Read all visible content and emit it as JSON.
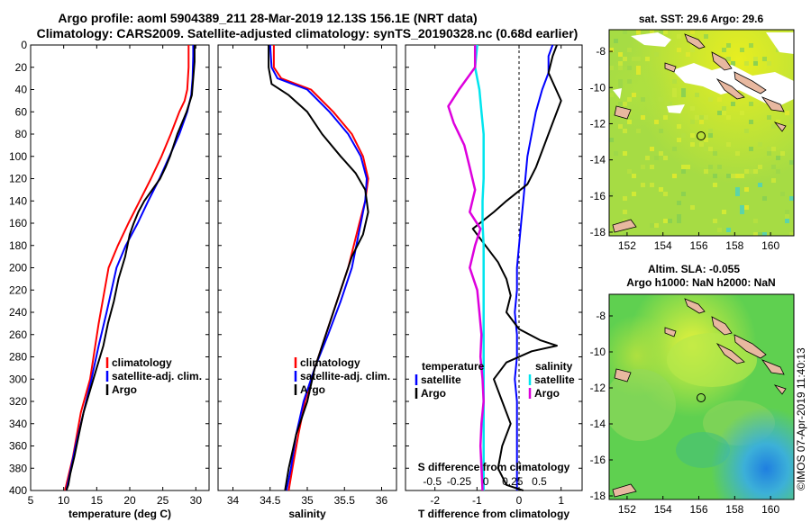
{
  "title_line1": "Argo profile: aoml 5904389_211 28-Mar-2019 12.13S 156.1E (NRT data)",
  "title_line2": "Climatology: CARS2009. Satellite-adjusted climatology: synTS_20190328.nc (0.68d earlier)",
  "credit": "©IMOS 07-Apr-2019 11:40:13",
  "colors": {
    "climatology": "#ff0000",
    "satellite": "#0000ff",
    "argo": "#000000",
    "sat_salinity": "#00e5ee",
    "clim_salinity": "#dd00dd"
  },
  "chart_data": [
    {
      "type": "line",
      "name": "temperature",
      "xlabel": "temperature (deg C)",
      "xlim": [
        5,
        32
      ],
      "xticks": [
        5,
        10,
        15,
        20,
        25,
        30
      ],
      "ylim": [
        0,
        400
      ],
      "yticks": [
        0,
        20,
        40,
        60,
        80,
        100,
        120,
        140,
        160,
        180,
        200,
        220,
        240,
        260,
        280,
        300,
        320,
        340,
        360,
        380,
        400
      ],
      "legend": [
        "climatology",
        "satellite-adj. clim.",
        "Argo"
      ],
      "series": [
        {
          "name": "climatology",
          "color": "#ff0000",
          "x": [
            28.9,
            28.9,
            28.7,
            28.3,
            27.5,
            26.2,
            24.8,
            23.2,
            21.5,
            19.8,
            18.2,
            16.8,
            15.3,
            14.0,
            12.6,
            11.4,
            10.2
          ],
          "y": [
            0,
            20,
            40,
            50,
            60,
            80,
            100,
            120,
            140,
            160,
            180,
            200,
            250,
            300,
            330,
            370,
            400
          ]
        },
        {
          "name": "satellite-adj. clim.",
          "color": "#0000ff",
          "x": [
            29.6,
            29.6,
            29.5,
            29.3,
            28.7,
            27.5,
            26.0,
            24.5,
            22.8,
            21.2,
            19.4,
            18.0,
            16.5,
            15.3,
            14.2,
            13.0,
            11.8,
            10.4
          ],
          "y": [
            0,
            10,
            30,
            45,
            60,
            80,
            100,
            120,
            140,
            160,
            180,
            200,
            240,
            270,
            300,
            330,
            360,
            400
          ]
        },
        {
          "name": "Argo",
          "color": "#000000",
          "x": [
            29.8,
            29.8,
            29.6,
            29.4,
            28.6,
            27.2,
            26.1,
            25.4,
            24.6,
            23.4,
            22.2,
            21.3,
            20.6,
            20.0,
            19.3,
            18.3,
            17.6,
            16.7,
            16.0,
            15.0,
            14.0,
            13.0,
            12.3,
            11.6,
            11.0,
            10.7,
            10.4
          ],
          "y": [
            0,
            15,
            30,
            45,
            60,
            80,
            100,
            110,
            120,
            130,
            140,
            150,
            160,
            170,
            190,
            210,
            230,
            250,
            270,
            290,
            310,
            330,
            350,
            370,
            385,
            395,
            400
          ]
        }
      ]
    },
    {
      "type": "line",
      "name": "salinity",
      "xlabel": "salinity",
      "xlim": [
        33.8,
        36.2
      ],
      "xticks": [
        34,
        34.5,
        35,
        35.5,
        36
      ],
      "ylim": [
        0,
        400
      ],
      "legend": [
        "climatology",
        "satellite-adj. clim.",
        "Argo"
      ],
      "series": [
        {
          "name": "climatology",
          "color": "#ff0000",
          "x": [
            34.55,
            34.55,
            34.65,
            35.05,
            35.35,
            35.6,
            35.75,
            35.82,
            35.78,
            35.7,
            35.55,
            35.4,
            35.25,
            35.1,
            34.97,
            34.88,
            34.8,
            34.75
          ],
          "y": [
            0,
            20,
            30,
            40,
            60,
            80,
            100,
            120,
            140,
            160,
            200,
            230,
            260,
            290,
            320,
            350,
            380,
            400
          ]
        },
        {
          "name": "satellite-adj. clim.",
          "color": "#0000ff",
          "x": [
            34.5,
            34.52,
            34.6,
            35.0,
            35.3,
            35.55,
            35.72,
            35.8,
            35.78,
            35.72,
            35.6,
            35.45,
            35.28,
            35.1,
            34.95,
            34.85,
            34.78,
            34.72
          ],
          "y": [
            0,
            20,
            30,
            40,
            60,
            80,
            100,
            120,
            140,
            160,
            200,
            230,
            260,
            290,
            320,
            350,
            380,
            400
          ]
        },
        {
          "name": "Argo",
          "color": "#000000",
          "x": [
            34.48,
            34.48,
            34.52,
            34.75,
            35.0,
            35.2,
            35.45,
            35.65,
            35.78,
            35.82,
            35.75,
            35.6,
            35.5,
            35.4,
            35.25,
            35.1,
            35.0,
            34.85,
            34.75,
            34.7
          ],
          "y": [
            0,
            20,
            35,
            45,
            60,
            80,
            100,
            115,
            130,
            150,
            170,
            190,
            210,
            230,
            260,
            290,
            320,
            350,
            380,
            400
          ]
        }
      ]
    },
    {
      "type": "line",
      "name": "difference from climatology",
      "xlabel": "T difference from climatology",
      "xlabel_top": "S difference from climatology",
      "xlim": [
        -2.7,
        1.5
      ],
      "xticks": [
        -2,
        -1,
        0,
        1
      ],
      "xlim_top": [
        -0.75,
        0.9
      ],
      "xticks_top": [
        -0.5,
        -0.25,
        0,
        0.25,
        0.5
      ],
      "ylim": [
        0,
        400
      ],
      "legend_temperature": {
        "heading": "temperature",
        "items": [
          "satellite",
          "Argo"
        ]
      },
      "legend_salinity": {
        "heading": "salinity",
        "items": [
          "satellite",
          "Argo"
        ]
      },
      "series": [
        {
          "name": "T satellite",
          "color": "#0000ff",
          "x": [
            0.8,
            0.7,
            0.7,
            0.55,
            0.4,
            0.3,
            0.2,
            0.15,
            0.1,
            0.05,
            0.0,
            -0.05,
            -0.05,
            -0.1,
            -0.05,
            -0.05,
            -0.1,
            -0.05,
            -0.05,
            -0.05,
            -0.05
          ],
          "y": [
            0,
            10,
            25,
            40,
            60,
            80,
            100,
            120,
            140,
            160,
            180,
            200,
            220,
            240,
            260,
            280,
            300,
            320,
            340,
            360,
            400
          ]
        },
        {
          "name": "T Argo",
          "color": "#000000",
          "x": [
            0.9,
            0.8,
            0.7,
            1.0,
            0.8,
            0.6,
            0.4,
            0.2,
            -0.3,
            -0.6,
            -1.1,
            -0.8,
            -0.5,
            -0.3,
            -0.2,
            -0.3,
            0.0,
            0.5,
            0.9,
            0.3,
            -0.3,
            -0.6,
            -0.4,
            -0.2,
            -0.4,
            -0.5,
            -0.3,
            0.1
          ],
          "y": [
            0,
            10,
            25,
            50,
            70,
            90,
            110,
            125,
            140,
            150,
            165,
            180,
            195,
            210,
            225,
            240,
            255,
            265,
            270,
            275,
            285,
            300,
            320,
            340,
            360,
            380,
            395,
            400
          ]
        },
        {
          "name": "S satellite",
          "color": "#00e5ee",
          "x": [
            -0.08,
            -0.1,
            -0.06,
            -0.04,
            -0.02,
            -0.02,
            -0.02,
            -0.03,
            -0.03,
            -0.02,
            -0.02,
            -0.02,
            -0.02,
            -0.02,
            -0.02,
            -0.02,
            -0.02
          ],
          "y": [
            0,
            20,
            40,
            60,
            80,
            100,
            120,
            140,
            160,
            180,
            200,
            240,
            280,
            320,
            360,
            390,
            400
          ]
        },
        {
          "name": "S Argo",
          "color": "#dd00dd",
          "x": [
            -0.1,
            -0.1,
            -0.25,
            -0.35,
            -0.3,
            -0.2,
            -0.15,
            -0.1,
            -0.15,
            -0.05,
            -0.1,
            -0.15,
            -0.08,
            -0.06,
            -0.04,
            -0.05,
            -0.03,
            -0.02,
            -0.04,
            -0.05,
            -0.03
          ],
          "y": [
            0,
            20,
            40,
            55,
            70,
            90,
            110,
            130,
            150,
            165,
            180,
            200,
            220,
            240,
            260,
            280,
            300,
            320,
            340,
            360,
            400
          ]
        }
      ]
    },
    {
      "type": "heatmap",
      "name": "sst_map",
      "title": "sat. SST: 29.6 Argo: 29.6",
      "xlim": [
        151,
        161.3
      ],
      "xticks": [
        152,
        154,
        156,
        158,
        160
      ],
      "ylim": [
        -18.2,
        -6.8
      ],
      "yticks": [
        -8,
        -10,
        -12,
        -14,
        -16,
        -18
      ],
      "argo_position": {
        "lon": 156.1,
        "lat": -12.13
      }
    },
    {
      "type": "heatmap",
      "name": "sla_map",
      "title_line1": "Altim. SLA: -0.055",
      "title_line2": "Argo h1000: NaN h2000: NaN",
      "xlim": [
        151,
        161.3
      ],
      "xticks": [
        152,
        154,
        156,
        158,
        160
      ],
      "ylim": [
        -18.2,
        -6.8
      ],
      "yticks": [
        -8,
        -10,
        -12,
        -14,
        -16,
        -18
      ],
      "argo_position": {
        "lon": 156.1,
        "lat": -12.13
      }
    }
  ]
}
